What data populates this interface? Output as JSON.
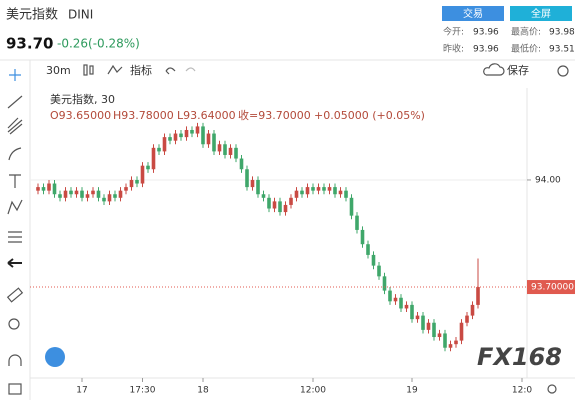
{
  "header": {
    "title": "美元指数",
    "symbol": "DINI",
    "price": "93.70",
    "change": "-0.26(-0.28%)",
    "trade_button": "交易",
    "fullscreen_button": "全屏",
    "stats": [
      {
        "label": "今开:",
        "value": "93.96"
      },
      {
        "label": "最高价:",
        "value": "93.98"
      },
      {
        "label": "昨收:",
        "value": "93.96"
      },
      {
        "label": "最低价:",
        "value": "93.51"
      }
    ]
  },
  "toolbar": {
    "interval": "30m",
    "indicators": "指标",
    "save": "保存"
  },
  "legend": {
    "name": "美元指数, 30",
    "open": "O93.65000",
    "high": "H93.78000",
    "low": "L93.64000",
    "close": "收=93.70000",
    "change": "+0.05000 (+0.05%)"
  },
  "logo": "FX168",
  "chart_data": {
    "type": "candlestick",
    "up_color": "#c94a43",
    "down_color": "#3fa76a",
    "categories": [
      null,
      null,
      null,
      null,
      null,
      null,
      null,
      null,
      "17",
      null,
      null,
      null,
      null,
      null,
      null,
      null,
      null,
      null,
      null,
      "17:30",
      null,
      null,
      null,
      null,
      null,
      null,
      null,
      null,
      null,
      null,
      "18",
      null,
      null,
      null,
      null,
      null,
      null,
      null,
      null,
      null,
      null,
      null,
      null,
      null,
      null,
      null,
      null,
      null,
      null,
      null,
      "12:00",
      null,
      null,
      null,
      null,
      null,
      null,
      null,
      null,
      null,
      null,
      null,
      null,
      null,
      null,
      null,
      null,
      null,
      "19",
      null,
      null,
      null,
      null,
      null,
      null,
      null,
      null,
      null,
      null,
      null,
      null,
      null,
      null,
      null,
      null,
      null,
      null,
      null,
      "12:0"
    ],
    "open": [
      93.97,
      93.98,
      93.97,
      93.99,
      93.96,
      93.95,
      93.97,
      93.96,
      93.97,
      93.95,
      93.96,
      93.97,
      93.95,
      93.94,
      93.96,
      93.95,
      93.97,
      93.98,
      94.0,
      93.99,
      94.04,
      94.03,
      94.09,
      94.08,
      94.12,
      94.11,
      94.13,
      94.12,
      94.14,
      94.13,
      94.15,
      94.1,
      94.13,
      94.08,
      94.1,
      94.07,
      94.09,
      94.06,
      94.03,
      93.98,
      94.0,
      93.96,
      93.95,
      93.92,
      93.94,
      93.91,
      93.93,
      93.95,
      93.97,
      93.96,
      93.98,
      93.97,
      93.98,
      93.97,
      93.98,
      93.96,
      93.97,
      93.95,
      93.9,
      93.86,
      93.82,
      93.79,
      93.76,
      93.73,
      93.69,
      93.66,
      93.67,
      93.64,
      93.65,
      93.61,
      93.62,
      93.58,
      93.6,
      93.56,
      93.57,
      93.53,
      93.54,
      93.55,
      93.6,
      93.62,
      93.65,
      null,
      null,
      null,
      null,
      null,
      null,
      null,
      null
    ],
    "high": [
      93.99,
      93.99,
      94.0,
      94.0,
      93.97,
      93.98,
      93.98,
      93.98,
      93.98,
      93.97,
      93.98,
      93.98,
      93.96,
      93.97,
      93.97,
      93.98,
      93.99,
      94.01,
      94.01,
      94.05,
      94.05,
      94.1,
      94.1,
      94.13,
      94.13,
      94.14,
      94.14,
      94.15,
      94.15,
      94.16,
      94.16,
      94.14,
      94.14,
      94.11,
      94.11,
      94.1,
      94.1,
      94.07,
      94.04,
      94.01,
      94.01,
      93.97,
      93.96,
      93.95,
      93.95,
      93.94,
      93.96,
      93.98,
      93.98,
      93.99,
      93.99,
      93.99,
      93.99,
      93.99,
      93.99,
      93.98,
      93.98,
      93.96,
      93.91,
      93.87,
      93.83,
      93.8,
      93.77,
      93.74,
      93.7,
      93.68,
      93.68,
      93.66,
      93.66,
      93.63,
      93.63,
      93.61,
      93.61,
      93.58,
      93.58,
      93.55,
      93.56,
      93.61,
      93.63,
      93.66,
      93.78,
      null,
      null,
      null,
      null,
      null,
      null,
      null,
      null
    ],
    "low": [
      93.96,
      93.96,
      93.96,
      93.95,
      93.94,
      93.94,
      93.95,
      93.95,
      93.94,
      93.94,
      93.95,
      93.94,
      93.93,
      93.93,
      93.94,
      93.94,
      93.96,
      93.97,
      93.98,
      93.98,
      94.02,
      94.02,
      94.07,
      94.07,
      94.1,
      94.1,
      94.11,
      94.11,
      94.12,
      94.12,
      94.09,
      94.09,
      94.07,
      94.07,
      94.06,
      94.06,
      94.05,
      94.02,
      93.97,
      93.97,
      93.95,
      93.94,
      93.91,
      93.91,
      93.9,
      93.9,
      93.92,
      93.94,
      93.95,
      93.95,
      93.96,
      93.96,
      93.96,
      93.96,
      93.95,
      93.95,
      93.94,
      93.89,
      93.85,
      93.81,
      93.78,
      93.75,
      93.72,
      93.68,
      93.65,
      93.65,
      93.63,
      93.63,
      93.6,
      93.6,
      93.57,
      93.57,
      93.55,
      93.55,
      93.52,
      93.52,
      93.53,
      93.54,
      93.59,
      93.61,
      93.64,
      null,
      null,
      null,
      null,
      null,
      null,
      null,
      null
    ],
    "close": [
      93.98,
      93.97,
      93.99,
      93.96,
      93.95,
      93.97,
      93.96,
      93.97,
      93.95,
      93.96,
      93.97,
      93.95,
      93.94,
      93.96,
      93.95,
      93.97,
      93.98,
      94.0,
      93.99,
      94.04,
      94.03,
      94.09,
      94.08,
      94.12,
      94.11,
      94.13,
      94.12,
      94.14,
      94.13,
      94.15,
      94.1,
      94.13,
      94.08,
      94.1,
      94.07,
      94.09,
      94.06,
      94.03,
      93.98,
      94.0,
      93.96,
      93.95,
      93.92,
      93.94,
      93.91,
      93.93,
      93.95,
      93.97,
      93.96,
      93.98,
      93.97,
      93.98,
      93.97,
      93.98,
      93.96,
      93.97,
      93.95,
      93.9,
      93.86,
      93.82,
      93.79,
      93.76,
      93.73,
      93.69,
      93.66,
      93.67,
      93.64,
      93.65,
      93.61,
      93.62,
      93.58,
      93.6,
      93.56,
      93.57,
      93.53,
      93.54,
      93.55,
      93.6,
      93.62,
      93.65,
      93.7,
      null,
      null,
      null,
      null,
      null,
      null,
      null,
      null
    ],
    "ylim": [
      93.462,
      94.238
    ],
    "yticks": [
      {
        "value": 94,
        "label": "94.00"
      }
    ],
    "grid": true,
    "last_price": {
      "value": 93.7,
      "label": "93.70000"
    },
    "last_price_color": "#e05a4f"
  }
}
